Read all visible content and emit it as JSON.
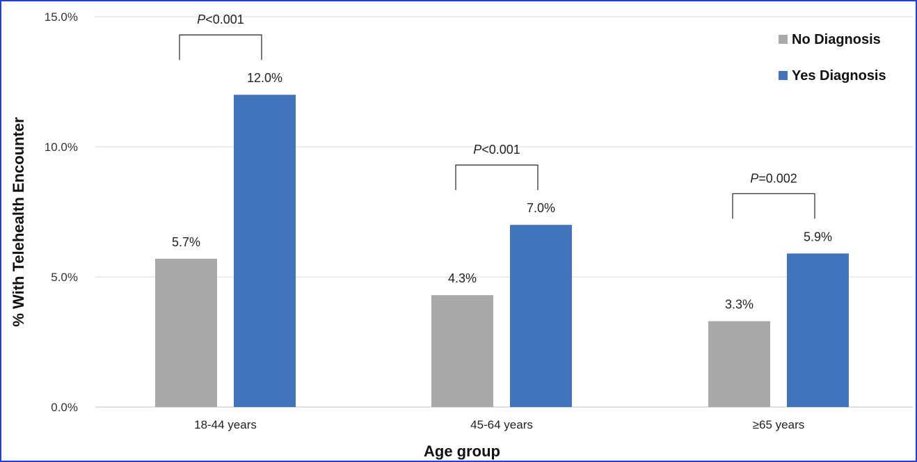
{
  "chart_data": {
    "type": "bar",
    "xlabel": "Age group",
    "ylabel": "% With Telehealth Encounter",
    "ylim": [
      0,
      15
    ],
    "yticks": [
      "0.0%",
      "5.0%",
      "10.0%",
      "15.0%"
    ],
    "ytick_values": [
      0,
      5,
      10,
      15
    ],
    "categories": [
      "18-44 years",
      "45-64 years",
      "≥65 years"
    ],
    "series": [
      {
        "name": "No Diagnosis",
        "color": "#a9a9a9",
        "values": [
          5.7,
          4.3,
          3.3
        ],
        "labels": [
          "5.7%",
          "4.3%",
          "3.3%"
        ]
      },
      {
        "name": "Yes Diagnosis",
        "color": "#4273bd",
        "values": [
          12.0,
          7.0,
          5.9
        ],
        "labels": [
          "12.0%",
          "7.0%",
          "5.9%"
        ]
      }
    ],
    "annotations": [
      {
        "symbol": "P",
        "rest": "<0.001"
      },
      {
        "symbol": "P",
        "rest": "<0.001"
      },
      {
        "symbol": "P",
        "rest": "=0.002"
      }
    ],
    "grid": true,
    "legend_position": "top-right"
  }
}
